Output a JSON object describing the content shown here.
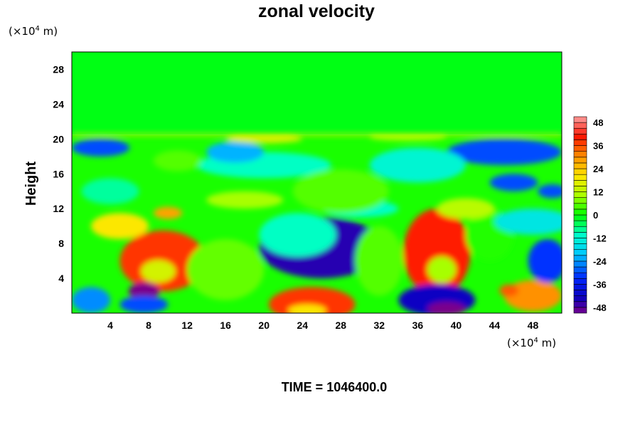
{
  "chart_data": {
    "type": "heatmap",
    "title": "zonal velocity",
    "ylabel": "Height",
    "xlabel": "",
    "x_unit": {
      "prefix": "(×10",
      "exp": "4",
      "suffix": " m)"
    },
    "y_unit": {
      "prefix": "(×10",
      "exp": "4",
      "suffix": " m)"
    },
    "xlim": [
      0,
      51
    ],
    "ylim": [
      0,
      30
    ],
    "x_ticks": [
      4,
      8,
      12,
      16,
      20,
      24,
      28,
      32,
      36,
      40,
      44,
      48
    ],
    "y_ticks": [
      4,
      8,
      12,
      16,
      20,
      24,
      28
    ],
    "colorbar": {
      "range": [
        -51,
        51
      ],
      "ticks": [
        48,
        36,
        24,
        12,
        0,
        -12,
        -24,
        -36,
        -48
      ],
      "levels": [
        -51,
        -48,
        -45,
        -42,
        -39,
        -36,
        -33,
        -30,
        -27,
        -24,
        -21,
        -18,
        -15,
        -12,
        -9,
        -6,
        -3,
        0,
        3,
        6,
        9,
        12,
        15,
        18,
        21,
        24,
        27,
        30,
        33,
        36,
        39,
        42,
        45,
        48,
        51
      ]
    },
    "baseline": {
      "below": 1.5,
      "above": -1,
      "interface": 20.5
    },
    "features": [
      {
        "x": 26,
        "y": 7.5,
        "rx": 6.5,
        "ry": 3.5,
        "value": -45
      },
      {
        "x": 23.5,
        "y": 9,
        "rx": 4,
        "ry": 2.5,
        "value": -10
      },
      {
        "x": 38,
        "y": 7,
        "rx": 3.5,
        "ry": 5,
        "value": 40
      },
      {
        "x": 38.5,
        "y": 5,
        "rx": 1.5,
        "ry": 1.5,
        "value": 10
      },
      {
        "x": 9.5,
        "y": 6,
        "rx": 4.5,
        "ry": 3.5,
        "value": 38
      },
      {
        "x": 9,
        "y": 4.8,
        "rx": 1.8,
        "ry": 1.3,
        "value": 15
      },
      {
        "x": 5,
        "y": 10,
        "rx": 3,
        "ry": 1.5,
        "value": 20
      },
      {
        "x": 7.5,
        "y": 2.5,
        "rx": 1.6,
        "ry": 1,
        "value": -55
      },
      {
        "x": 7.5,
        "y": 1,
        "rx": 2.5,
        "ry": 1,
        "value": -30
      },
      {
        "x": 2,
        "y": 1.5,
        "rx": 2,
        "ry": 1.5,
        "value": -25
      },
      {
        "x": 25,
        "y": 1,
        "rx": 4.5,
        "ry": 2,
        "value": 38
      },
      {
        "x": 24.5,
        "y": 0.3,
        "rx": 2,
        "ry": 0.7,
        "value": 20
      },
      {
        "x": 38,
        "y": 1.5,
        "rx": 4,
        "ry": 1.8,
        "value": -42
      },
      {
        "x": 39,
        "y": 0.5,
        "rx": 2,
        "ry": 0.8,
        "value": -55
      },
      {
        "x": 48,
        "y": 2,
        "rx": 3,
        "ry": 1.8,
        "value": 30
      },
      {
        "x": 45.5,
        "y": 2.6,
        "rx": 1,
        "ry": 0.7,
        "value": 35
      },
      {
        "x": 16,
        "y": 5,
        "rx": 4,
        "ry": 3.5,
        "value": 6
      },
      {
        "x": 32,
        "y": 6,
        "rx": 2.5,
        "ry": 4,
        "value": 5
      },
      {
        "x": 43.5,
        "y": 9,
        "rx": 2.5,
        "ry": 3,
        "value": 2
      },
      {
        "x": 49.5,
        "y": 6,
        "rx": 2,
        "ry": 2.5,
        "value": -32
      },
      {
        "x": 48,
        "y": 10.5,
        "rx": 4,
        "ry": 1.5,
        "value": -15
      },
      {
        "x": 10,
        "y": 11.5,
        "rx": 1.5,
        "ry": 0.7,
        "value": 28
      },
      {
        "x": 18,
        "y": 13,
        "rx": 4,
        "ry": 1,
        "value": 10
      },
      {
        "x": 30,
        "y": 12,
        "rx": 4,
        "ry": 1,
        "value": -10
      },
      {
        "x": 20,
        "y": 17,
        "rx": 7,
        "ry": 1.5,
        "value": -10
      },
      {
        "x": 17,
        "y": 18.5,
        "rx": 3,
        "ry": 1.2,
        "value": -22
      },
      {
        "x": 3,
        "y": 19,
        "rx": 3,
        "ry": 1,
        "value": -30
      },
      {
        "x": 45,
        "y": 18.5,
        "rx": 6,
        "ry": 1.5,
        "value": -30
      },
      {
        "x": 46,
        "y": 15,
        "rx": 2.5,
        "ry": 1,
        "value": -30
      },
      {
        "x": 50,
        "y": 14,
        "rx": 1.5,
        "ry": 0.8,
        "value": -30
      },
      {
        "x": 28,
        "y": 14,
        "rx": 5,
        "ry": 2.5,
        "value": 5
      },
      {
        "x": 36,
        "y": 17,
        "rx": 5,
        "ry": 2,
        "value": -12
      },
      {
        "x": 11,
        "y": 17.5,
        "rx": 2.5,
        "ry": 1.2,
        "value": 5
      },
      {
        "x": 20,
        "y": 20,
        "rx": 4,
        "ry": 0.5,
        "value": 15
      },
      {
        "x": 35,
        "y": 20.2,
        "rx": 4,
        "ry": 0.4,
        "value": 10
      },
      {
        "x": 4,
        "y": 14,
        "rx": 3,
        "ry": 1.5,
        "value": -8
      },
      {
        "x": 41,
        "y": 12,
        "rx": 3,
        "ry": 1.2,
        "value": 12
      }
    ]
  },
  "footer": {
    "time_label": "TIME = 1046400.0"
  }
}
